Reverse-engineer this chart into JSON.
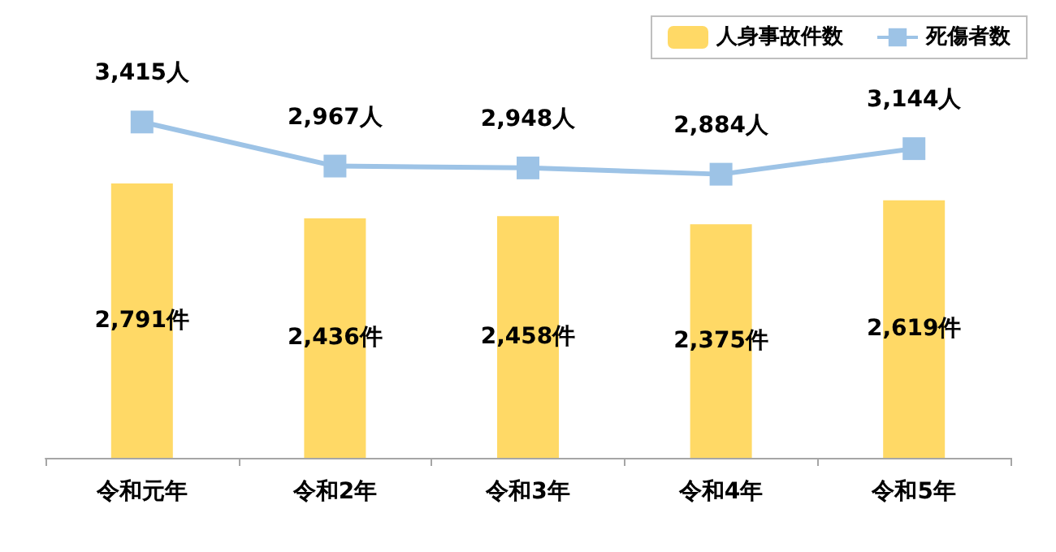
{
  "chart_data": {
    "type": "bar",
    "categories": [
      "令和元年",
      "令和2年",
      "令和3年",
      "令和4年",
      "令和5年"
    ],
    "series": [
      {
        "name": "人身事故件数",
        "color": "#ffd966",
        "values": [
          2791,
          2436,
          2458,
          2375,
          2619
        ],
        "value_labels": [
          "2,791件",
          "2,436件",
          "2,458件",
          "2,375件",
          "2,619件"
        ]
      },
      {
        "name": "死傷者数",
        "type": "line",
        "color": "#9dc3e6",
        "values": [
          3415,
          2967,
          2948,
          2884,
          3144
        ],
        "value_labels": [
          "3,415人",
          "2,967人",
          "2,948人",
          "2,884人",
          "3,144人"
        ]
      }
    ],
    "marker": "square",
    "legend": "top right",
    "grid": false
  }
}
